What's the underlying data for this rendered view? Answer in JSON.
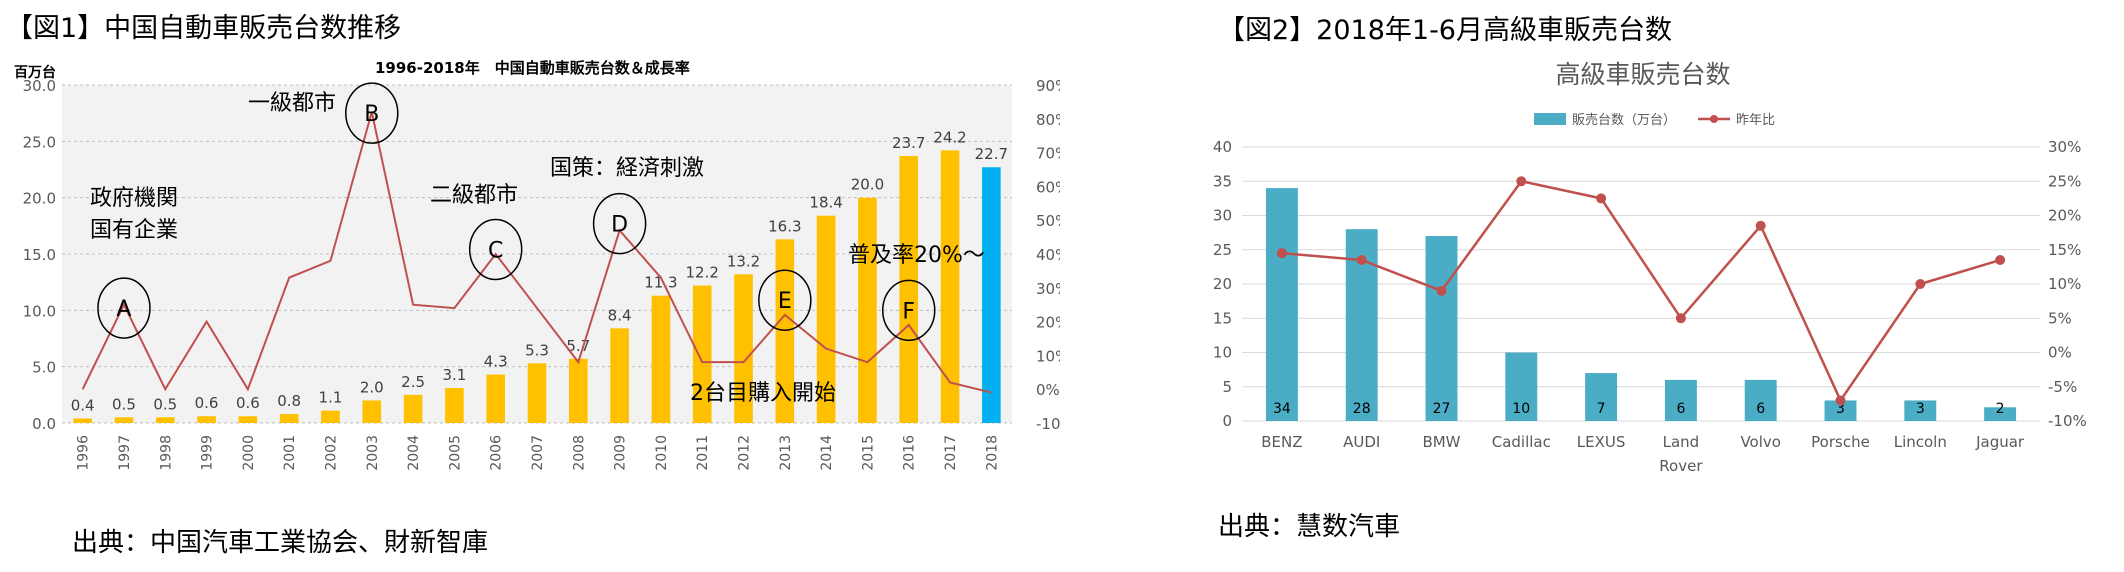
{
  "fig1": {
    "title": "【図1】中国自動車販売台数推移",
    "source": "出典：中国汽車工業協会、財新智庫"
  },
  "fig2": {
    "title": "【図2】2018年1-6月高級車販売台数",
    "source": "出典：慧数汽車"
  },
  "chart_data": [
    {
      "type": "bar",
      "title": "1996-2018年　中国自動車販売台数＆成長率",
      "ylabel_left": "百万台",
      "categories": [
        "1996",
        "1997",
        "1998",
        "1999",
        "2000",
        "2001",
        "2002",
        "2003",
        "2004",
        "2005",
        "2006",
        "2007",
        "2008",
        "2009",
        "2010",
        "2011",
        "2012",
        "2013",
        "2014",
        "2015",
        "2016",
        "2017",
        "2018"
      ],
      "series": [
        {
          "kind": "bar",
          "values": [
            0.4,
            0.5,
            0.5,
            0.6,
            0.6,
            0.8,
            1.1,
            2.0,
            2.5,
            3.1,
            4.3,
            5.3,
            5.7,
            8.4,
            11.3,
            12.2,
            13.2,
            16.3,
            18.4,
            20.0,
            23.7,
            24.2,
            22.7
          ]
        },
        {
          "kind": "line",
          "axis": "right",
          "values": [
            0,
            25,
            0,
            20,
            0,
            33,
            38,
            82,
            25,
            24,
            40,
            24,
            8,
            47,
            33,
            8,
            8,
            22,
            12,
            8,
            19,
            2,
            -1
          ]
        }
      ],
      "ylim_left": [
        0,
        30
      ],
      "ylim_right": [
        -10,
        90
      ],
      "y_ticks_left": [
        "0.0",
        "5.0",
        "10.0",
        "15.0",
        "20.0",
        "25.0",
        "30.0"
      ],
      "y_ticks_right": [
        "-10%",
        "0%",
        "10%",
        "20%",
        "30%",
        "40%",
        "50%",
        "60%",
        "70%",
        "80%",
        "90%"
      ],
      "colors": {
        "bar": "#FFC000",
        "bar_last": "#00B0F0",
        "line": "#C0504D",
        "plot_bg": "#F2F2F2"
      },
      "grid": true,
      "annotations": [
        {
          "text": "政府機関",
          "near": "1997"
        },
        {
          "text": "国有企業",
          "near": "1997"
        },
        {
          "text": "一級都市",
          "near": "2003"
        },
        {
          "text": "二級都市",
          "near": "2006"
        },
        {
          "text": "国策：経済刺激",
          "near": "2009"
        },
        {
          "text": "2台目購入開始",
          "near": "2013"
        },
        {
          "text": "普及率20%～",
          "near": "2016"
        }
      ],
      "markers": [
        {
          "label": "A",
          "x": "1997"
        },
        {
          "label": "B",
          "x": "2003"
        },
        {
          "label": "C",
          "x": "2006"
        },
        {
          "label": "D",
          "x": "2009"
        },
        {
          "label": "E",
          "x": "2013"
        },
        {
          "label": "F",
          "x": "2016"
        }
      ]
    },
    {
      "type": "bar",
      "title": "高級車販売台数",
      "legend": [
        "販売台数（万台）",
        "昨年比"
      ],
      "legend_position": "top",
      "categories": [
        "BENZ",
        "AUDI",
        "BMW",
        "Cadillac",
        "LEXUS",
        "Land Rover",
        "Volvo",
        "Porsche",
        "Lincoln",
        "Jaguar"
      ],
      "series": [
        {
          "name": "販売台数（万台）",
          "kind": "bar",
          "values": [
            34,
            28,
            27,
            10,
            7,
            6,
            6,
            3,
            3,
            2
          ]
        },
        {
          "name": "昨年比",
          "kind": "line",
          "axis": "right",
          "values": [
            14.5,
            13.5,
            9,
            25,
            22.5,
            5,
            18.5,
            -7,
            10,
            13.5
          ]
        }
      ],
      "ylim_left": [
        0,
        40
      ],
      "ylim_right": [
        -10,
        30
      ],
      "y_ticks_left": [
        "0",
        "5",
        "10",
        "15",
        "20",
        "25",
        "30",
        "35",
        "40"
      ],
      "y_ticks_right": [
        "-10%",
        "-5%",
        "0%",
        "5%",
        "10%",
        "15%",
        "20%",
        "25%",
        "30%"
      ],
      "colors": {
        "bar": "#4BACC6",
        "line": "#C0504D"
      },
      "grid": true
    }
  ]
}
